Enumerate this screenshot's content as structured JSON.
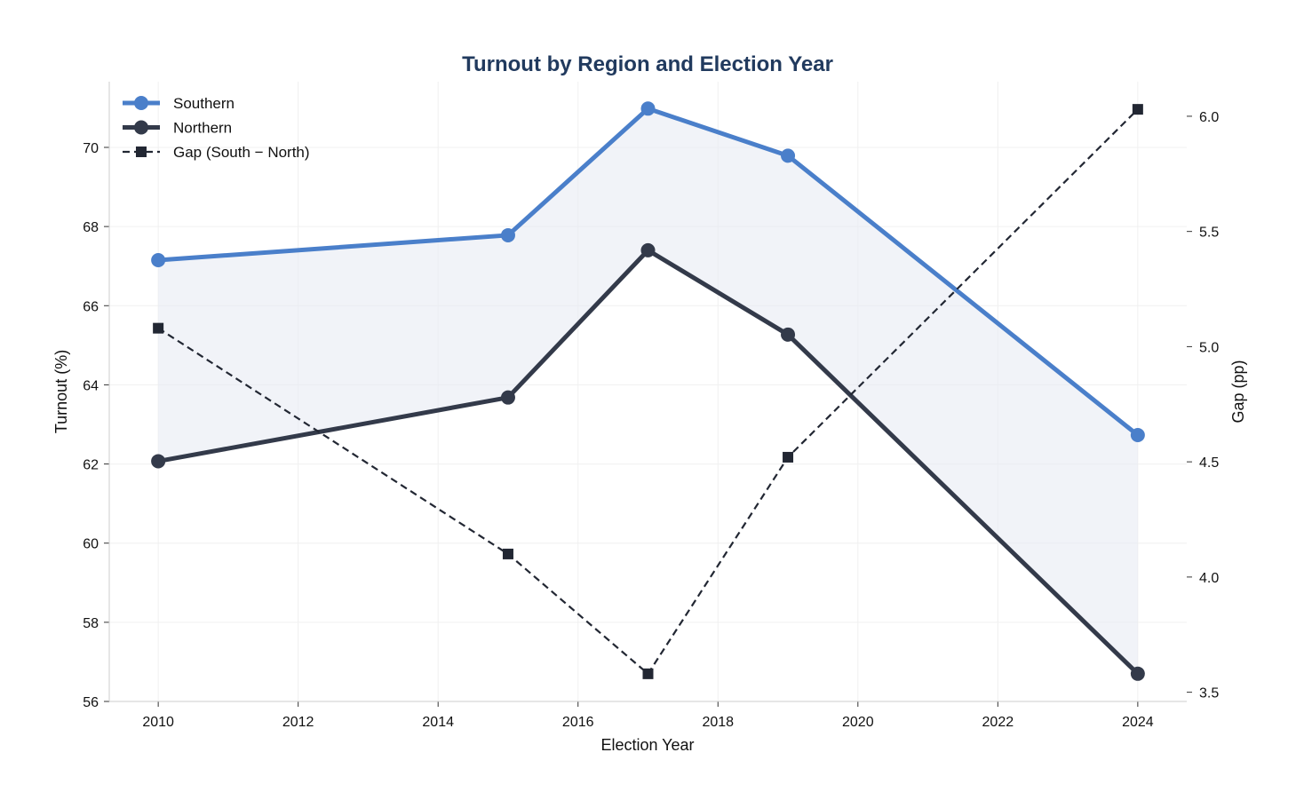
{
  "chart_data": {
    "type": "line",
    "title": "Turnout by Region and Election Year",
    "xlabel": "Election Year",
    "ylabel": "Turnout (%)",
    "y2label": "Gap (pp)",
    "x": [
      2010,
      2015,
      2017,
      2019,
      2024
    ],
    "xlim": [
      2009.3,
      2024.7
    ],
    "ylim": [
      56,
      71.66
    ],
    "y2lim": [
      3.46,
      6.15
    ],
    "xticks": [
      2010,
      2012,
      2014,
      2016,
      2018,
      2020,
      2022,
      2024
    ],
    "yticks": [
      56,
      58,
      60,
      62,
      64,
      66,
      68,
      70
    ],
    "y2ticks": [
      3.5,
      4.0,
      4.5,
      5.0,
      5.5,
      6.0
    ],
    "grid": true,
    "legend": "top-left",
    "series": [
      {
        "name": "Southern",
        "axis": "left",
        "color": "#4a7fca",
        "marker": "circle",
        "values": [
          67.15,
          67.78,
          70.98,
          69.79,
          62.73
        ]
      },
      {
        "name": "Northern",
        "axis": "left",
        "color": "#333a4a",
        "marker": "circle",
        "values": [
          62.07,
          63.68,
          67.4,
          65.27,
          56.7
        ]
      },
      {
        "name": "Gap (South − North)",
        "axis": "right",
        "color": "#222733",
        "marker": "square",
        "dashed": true,
        "values": [
          5.08,
          4.1,
          3.58,
          4.52,
          6.03
        ]
      }
    ],
    "fill_between": {
      "series": [
        "Southern",
        "Northern"
      ],
      "color": "#e8ebf4"
    },
    "title_color": "#213a5e"
  }
}
